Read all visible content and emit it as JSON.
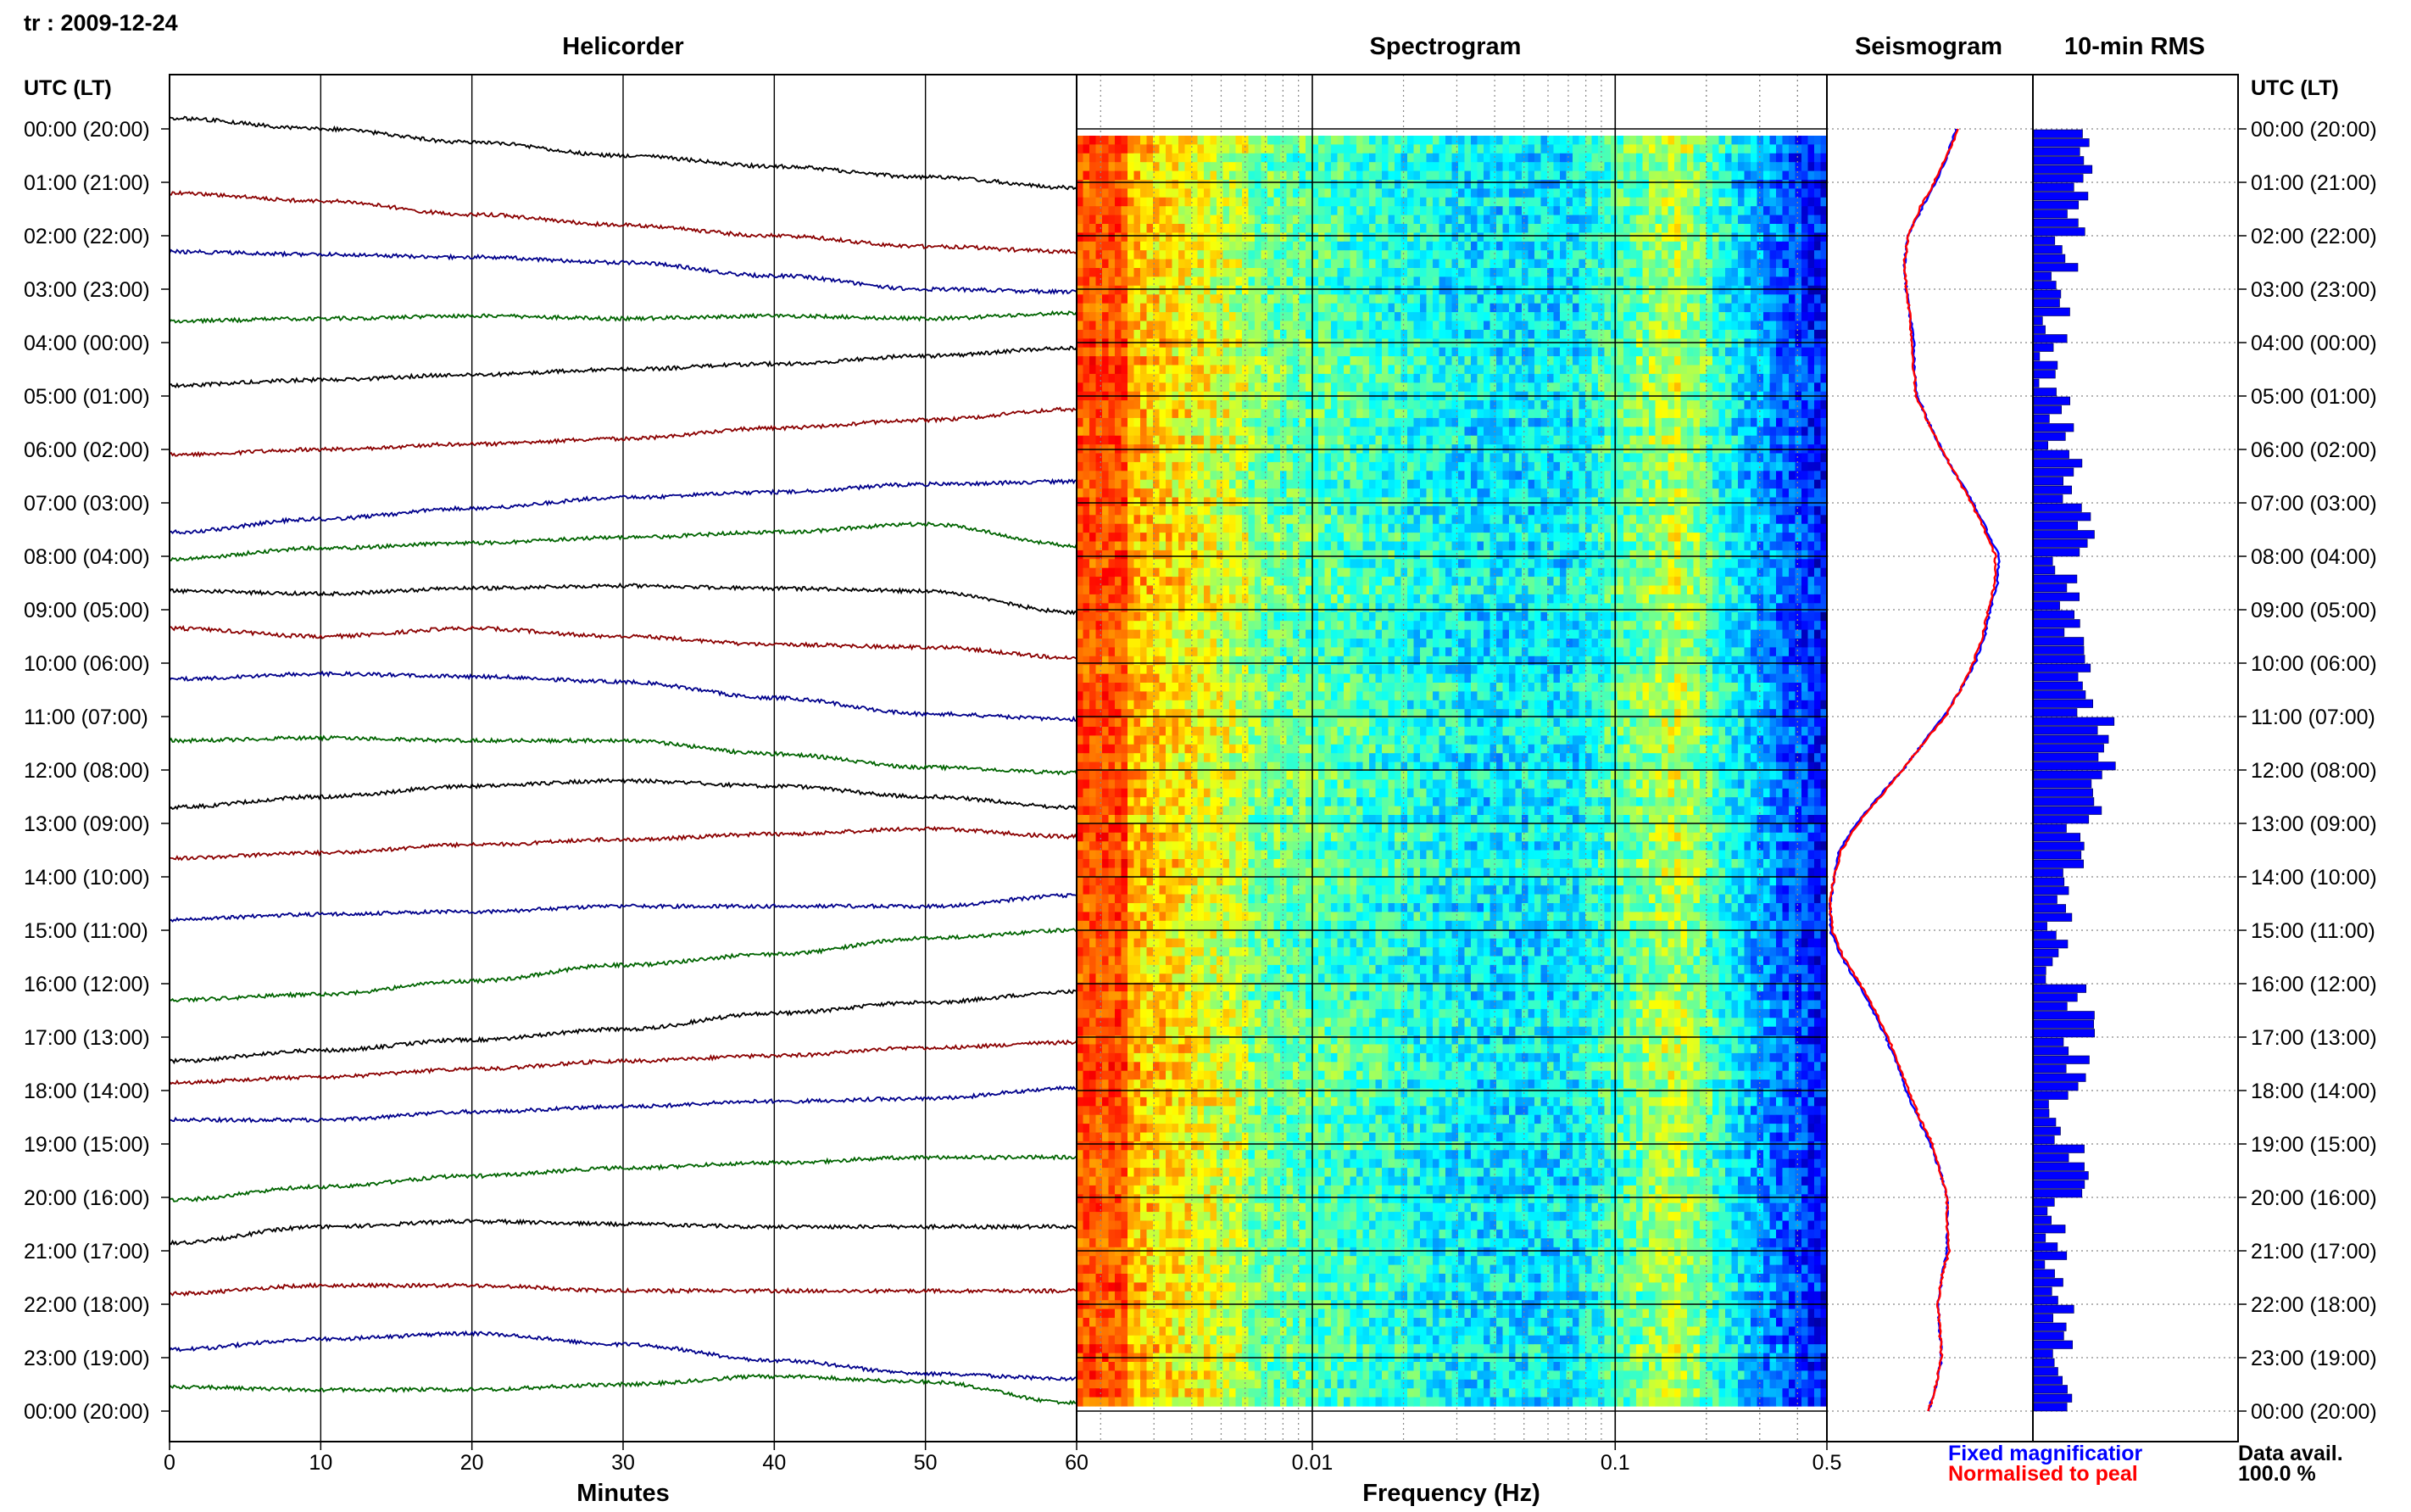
{
  "header": {
    "station_date": "tr : 2009-12-24"
  },
  "panels": {
    "helicorder_title": "Helicorder",
    "spectrogram_title": "Spectrogram",
    "seismogram_title": "Seismogram",
    "rms_title": "10-min RMS"
  },
  "axes": {
    "time_label_left": "UTC (LT)",
    "time_label_right": "UTC (LT)",
    "minutes_label": "Minutes",
    "frequency_label": "Frequency (Hz)"
  },
  "legend": {
    "fixed": "Fixed magnificatior",
    "normalised": "Normalised to peal",
    "fixed_color": "#0000ff",
    "normalised_color": "#ff0000"
  },
  "availability": {
    "label": "Data avail.",
    "value": "100.0 %"
  },
  "colors": {
    "trace_cycle": [
      "#000000",
      "#8b0000",
      "#00008b",
      "#006400"
    ]
  },
  "chart_data": [
    {
      "type": "line",
      "name": "helicorder",
      "x_ticks": [
        0,
        10,
        20,
        30,
        40,
        50,
        60
      ],
      "xlim": [
        0,
        60
      ],
      "hour_labels": [
        "00:00 (20:00)",
        "01:00 (21:00)",
        "02:00 (22:00)",
        "03:00 (23:00)",
        "04:00 (00:00)",
        "05:00 (01:00)",
        "06:00 (02:00)",
        "07:00 (03:00)",
        "08:00 (04:00)",
        "09:00 (05:00)",
        "10:00 (06:00)",
        "11:00 (07:00)",
        "12:00 (08:00)",
        "13:00 (09:00)",
        "14:00 (10:00)",
        "15:00 (11:00)",
        "16:00 (12:00)",
        "17:00 (13:00)",
        "18:00 (14:00)",
        "19:00 (15:00)",
        "20:00 (16:00)",
        "21:00 (17:00)",
        "22:00 (18:00)",
        "23:00 (19:00)",
        "00:00 (20:00)"
      ],
      "trace_offsets": [
        [
          -0.75,
          -0.55,
          -0.3,
          -0.05,
          0.15,
          0.35,
          0.55
        ],
        [
          -0.35,
          -0.2,
          0.05,
          0.25,
          0.45,
          0.65,
          0.75
        ],
        [
          -0.25,
          -0.2,
          -0.15,
          -0.05,
          0.2,
          0.45,
          0.5
        ],
        [
          0.05,
          0.0,
          -0.05,
          0.0,
          -0.05,
          0.0,
          -0.1
        ],
        [
          0.25,
          0.15,
          0.05,
          -0.05,
          -0.15,
          -0.3,
          -0.45
        ],
        [
          0.55,
          0.45,
          0.35,
          0.25,
          0.05,
          -0.1,
          -0.3
        ],
        [
          1.0,
          0.75,
          0.55,
          0.35,
          0.25,
          0.1,
          0.05
        ],
        [
          0.5,
          0.3,
          0.2,
          0.1,
          0.0,
          -0.15,
          0.25
        ],
        [
          0.1,
          0.15,
          0.05,
          0.0,
          0.05,
          0.1,
          0.5
        ],
        [
          -0.2,
          -0.05,
          -0.2,
          -0.05,
          0.1,
          0.15,
          0.35
        ],
        [
          -0.25,
          -0.35,
          -0.3,
          -0.2,
          0.1,
          0.4,
          0.5
        ],
        [
          -0.1,
          -0.15,
          -0.1,
          -0.1,
          0.15,
          0.4,
          0.5
        ],
        [
          0.15,
          -0.05,
          -0.25,
          -0.35,
          -0.25,
          -0.05,
          0.15
        ],
        [
          0.1,
          0.0,
          -0.15,
          -0.25,
          -0.35,
          -0.45,
          -0.3
        ],
        [
          0.25,
          0.15,
          0.1,
          0.0,
          0.0,
          0.0,
          -0.2
        ],
        [
          0.75,
          0.65,
          0.4,
          0.1,
          -0.1,
          -0.4,
          -0.55
        ],
        [
          0.9,
          0.7,
          0.5,
          0.3,
          0.0,
          -0.2,
          -0.4
        ],
        [
          0.3,
          0.2,
          0.05,
          -0.1,
          -0.2,
          -0.35,
          -0.45
        ],
        [
          0.0,
          0.0,
          -0.15,
          -0.25,
          -0.35,
          -0.4,
          -0.6
        ],
        [
          0.5,
          0.25,
          0.05,
          -0.1,
          -0.2,
          -0.3,
          -0.3
        ],
        [
          0.3,
          0.0,
          -0.1,
          -0.05,
          0.0,
          0.0,
          0.0
        ],
        [
          0.25,
          0.1,
          0.1,
          0.2,
          0.2,
          0.2,
          0.2
        ],
        [
          0.3,
          0.1,
          0.0,
          0.2,
          0.5,
          0.75,
          0.85
        ],
        [
          0.0,
          0.05,
          0.05,
          -0.05,
          -0.2,
          -0.1,
          0.3
        ]
      ]
    },
    {
      "type": "heatmap",
      "name": "spectrogram",
      "x_scale": "log",
      "xlim": [
        0.0016667,
        0.5
      ],
      "x_tick_labels": [
        "0.01",
        "0.1",
        "0.5"
      ],
      "x_ticks": [
        0.01,
        0.1,
        0.5
      ],
      "y_rows": 144,
      "colormap": "jet"
    },
    {
      "type": "line",
      "name": "seismogram",
      "y_hours": [
        0,
        0.5,
        1,
        1.5,
        2,
        2.5,
        3,
        3.5,
        4,
        4.5,
        5,
        5.5,
        6,
        6.5,
        7,
        7.5,
        8,
        8.5,
        9,
        9.5,
        10,
        10.5,
        11,
        11.5,
        12,
        12.5,
        13,
        13.5,
        14,
        14.5,
        15,
        15.5,
        16,
        16.5,
        17,
        17.5,
        18,
        18.5,
        19,
        19.5,
        20,
        20.5,
        21,
        21.5,
        22,
        22.5,
        23,
        23.5,
        24
      ],
      "series": [
        {
          "name": "Fixed magnificatior",
          "values": [
            0.68,
            0.63,
            0.57,
            0.49,
            0.42,
            0.4,
            0.41,
            0.43,
            0.45,
            0.45,
            0.47,
            0.53,
            0.6,
            0.68,
            0.77,
            0.84,
            0.91,
            0.9,
            0.86,
            0.83,
            0.78,
            0.7,
            0.61,
            0.5,
            0.39,
            0.26,
            0.14,
            0.05,
            0.02,
            0.0,
            0.0,
            0.06,
            0.15,
            0.23,
            0.3,
            0.36,
            0.41,
            0.47,
            0.54,
            0.59,
            0.63,
            0.63,
            0.63,
            0.6,
            0.58,
            0.59,
            0.6,
            0.57,
            0.53
          ]
        },
        {
          "name": "Normalised to peal",
          "values": [
            0.69,
            0.63,
            0.56,
            0.48,
            0.42,
            0.4,
            0.41,
            0.43,
            0.44,
            0.45,
            0.46,
            0.53,
            0.6,
            0.68,
            0.76,
            0.83,
            0.89,
            0.89,
            0.85,
            0.82,
            0.77,
            0.7,
            0.62,
            0.5,
            0.39,
            0.27,
            0.15,
            0.06,
            0.02,
            0.0,
            0.01,
            0.07,
            0.16,
            0.24,
            0.31,
            0.37,
            0.42,
            0.48,
            0.55,
            0.59,
            0.63,
            0.63,
            0.64,
            0.6,
            0.58,
            0.59,
            0.6,
            0.57,
            0.53
          ]
        }
      ]
    },
    {
      "type": "bar",
      "name": "rms",
      "orientation": "horizontal",
      "bin_minutes": 10,
      "hourly_means": [
        0.42,
        0.38,
        0.31,
        0.22,
        0.16,
        0.27,
        0.4,
        0.46,
        0.3,
        0.4,
        0.56,
        0.72,
        0.62,
        0.42,
        0.27,
        0.25,
        0.46,
        0.43,
        0.29,
        0.43,
        0.17,
        0.24,
        0.29,
        0.34
      ],
      "max_value": 1.0
    }
  ]
}
